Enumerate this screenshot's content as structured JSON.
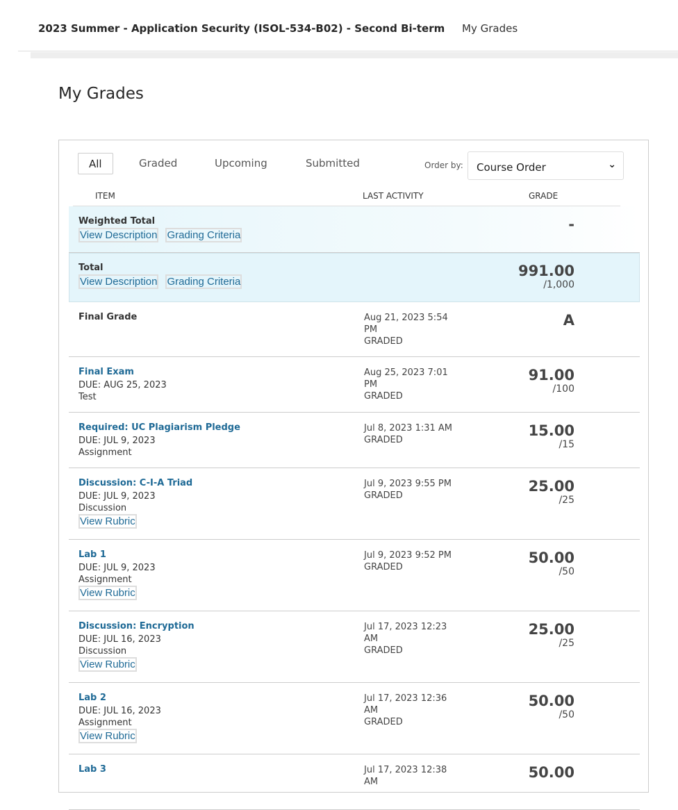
{
  "header": {
    "course_title": "2023 Summer - Application Security (ISOL-534-B02) - Second Bi-term",
    "breadcrumb": "My Grades"
  },
  "page_title": "My Grades",
  "filters": {
    "tabs": [
      "All",
      "Graded",
      "Upcoming",
      "Submitted"
    ],
    "active": "All",
    "order_by_label": "Order by:",
    "order_by_value": "Course Order"
  },
  "columns": {
    "item": "ITEM",
    "last_activity": "LAST ACTIVITY",
    "grade": "GRADE"
  },
  "weighted_total": {
    "name": "Weighted Total",
    "view_description": "View Description",
    "grading_criteria": "Grading Criteria",
    "grade": "-"
  },
  "total": {
    "name": "Total",
    "view_description": "View Description",
    "grading_criteria": "Grading Criteria",
    "grade": "991.00",
    "max": "/1,000"
  },
  "rows": [
    {
      "name": "Final Grade",
      "link": false,
      "due": "",
      "type": "",
      "rubric": "",
      "activity": "Aug 21, 2023 5:54 PM",
      "status": "GRADED",
      "grade": "A",
      "max": ""
    },
    {
      "name": "Final Exam",
      "link": true,
      "due": "DUE: AUG 25, 2023",
      "type": "Test",
      "rubric": "",
      "activity": "Aug 25, 2023 7:01 PM",
      "status": "GRADED",
      "grade": "91.00",
      "max": "/100"
    },
    {
      "name": "Required: UC Plagiarism Pledge",
      "link": true,
      "due": "DUE: JUL 9, 2023",
      "type": "Assignment",
      "rubric": "",
      "activity": "Jul 8, 2023 1:31 AM",
      "status": "GRADED",
      "grade": "15.00",
      "max": "/15"
    },
    {
      "name": "Discussion: C-I-A Triad",
      "link": true,
      "due": "DUE: JUL 9, 2023",
      "type": "Discussion",
      "rubric": "View Rubric",
      "activity": "Jul 9, 2023 9:55 PM",
      "status": "GRADED",
      "grade": "25.00",
      "max": "/25"
    },
    {
      "name": "Lab 1",
      "link": true,
      "due": "DUE: JUL 9, 2023",
      "type": "Assignment",
      "rubric": "View Rubric",
      "activity": "Jul 9, 2023 9:52 PM",
      "status": "GRADED",
      "grade": "50.00",
      "max": "/50"
    },
    {
      "name": "Discussion: Encryption",
      "link": true,
      "due": "DUE: JUL 16, 2023",
      "type": "Discussion",
      "rubric": "View Rubric",
      "activity": "Jul 17, 2023 12:23 AM",
      "status": "GRADED",
      "grade": "25.00",
      "max": "/25"
    },
    {
      "name": "Lab 2",
      "link": true,
      "due": "DUE: JUL 16, 2023",
      "type": "Assignment",
      "rubric": "View Rubric",
      "activity": "Jul 17, 2023 12:36 AM",
      "status": "GRADED",
      "grade": "50.00",
      "max": "/50"
    },
    {
      "name": "Lab 3",
      "link": true,
      "due": "",
      "type": "",
      "rubric": "",
      "activity": "Jul 17, 2023 12:38 AM",
      "status": "",
      "grade": "50.00",
      "max": ""
    }
  ]
}
